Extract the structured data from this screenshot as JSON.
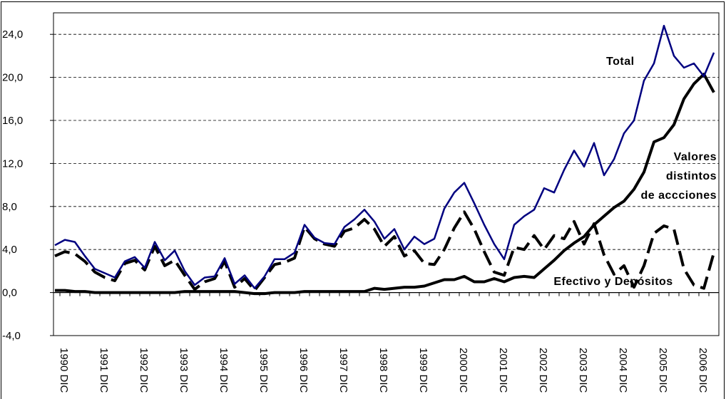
{
  "chart_data": {
    "type": "line",
    "categories": [
      null,
      "1990 DIC",
      null,
      null,
      null,
      "1991 DIC",
      null,
      null,
      null,
      "1992 DIC",
      null,
      null,
      null,
      "1993 DIC",
      null,
      null,
      null,
      "1994 DIC",
      null,
      null,
      null,
      "1995 DIC",
      null,
      null,
      null,
      "1996 DIC",
      null,
      null,
      null,
      "1997 DIC",
      null,
      null,
      null,
      "1998 DIC",
      null,
      null,
      null,
      "1999 DIC",
      null,
      null,
      null,
      "2000 DIC",
      null,
      null,
      null,
      "2001 DIC",
      null,
      null,
      null,
      "2002 DIC",
      null,
      null,
      null,
      "2003 DIC",
      null,
      null,
      null,
      "2004 DIC",
      null,
      null,
      null,
      "2005 DIC",
      null,
      null,
      null,
      "2006 DIC",
      null
    ],
    "series": [
      {
        "name": "Total",
        "color": "#000080",
        "style": "solid",
        "width": 2.5,
        "values": [
          4.4,
          4.9,
          4.7,
          3.4,
          2.2,
          1.8,
          1.4,
          2.9,
          3.3,
          2.3,
          4.7,
          3.0,
          3.9,
          2.0,
          0.7,
          1.4,
          1.5,
          3.2,
          0.8,
          1.6,
          0.4,
          1.5,
          3.1,
          3.1,
          3.7,
          6.3,
          5.1,
          4.6,
          4.5,
          6.1,
          6.8,
          7.7,
          6.6,
          5.0,
          5.9,
          4.0,
          5.2,
          4.5,
          5.0,
          7.8,
          9.3,
          10.2,
          8.3,
          6.3,
          4.5,
          3.1,
          6.3,
          7.1,
          7.7,
          9.7,
          9.3,
          11.4,
          13.2,
          11.7,
          13.9,
          10.9,
          12.4,
          14.8,
          16.0,
          19.7,
          21.3,
          24.8,
          22.0,
          20.9,
          21.3,
          20.1,
          22.3
        ]
      },
      {
        "color": "#000000",
        "style": "solid",
        "width": 4,
        "values": [
          0.2,
          0.2,
          0.1,
          0.1,
          0,
          0,
          0,
          0,
          0,
          0,
          0,
          0,
          0,
          0.1,
          0.1,
          0.1,
          0.1,
          0.1,
          0.1,
          0,
          -0.1,
          -0.1,
          0,
          0,
          0,
          0.1,
          0.1,
          0.1,
          0.1,
          0.1,
          0.1,
          0.1,
          0.4,
          0.3,
          0.4,
          0.5,
          0.5,
          0.6,
          0.9,
          1.2,
          1.2,
          1.5,
          1.0,
          1.0,
          1.3,
          1.0,
          1.4,
          1.5,
          1.4,
          2.2,
          3.0,
          3.9,
          4.6,
          5.2,
          6.3,
          7.1,
          7.9,
          8.5,
          9.6,
          11.2,
          14.0,
          14.4,
          15.6,
          18.0,
          19.4,
          20.3,
          18.6
        ]
      },
      {
        "name": "Efectivo y Depósitos",
        "color": "#000000",
        "style": "dashed",
        "width": 4,
        "values": [
          3.4,
          3.8,
          3.6,
          2.9,
          1.9,
          1.4,
          1.1,
          2.7,
          3.0,
          2.1,
          4.3,
          2.5,
          3.0,
          1.6,
          0.3,
          1.0,
          1.3,
          2.9,
          0.5,
          1.3,
          0.2,
          1.4,
          2.6,
          2.8,
          3.2,
          6.1,
          5.0,
          4.5,
          4.3,
          5.7,
          6.0,
          6.8,
          5.9,
          4.3,
          5.2,
          3.4,
          3.9,
          2.7,
          2.6,
          4.0,
          6.0,
          7.5,
          5.9,
          3.8,
          1.9,
          1.6,
          4.2,
          4.0,
          5.3,
          4.0,
          5.3,
          5.0,
          6.6,
          4.5,
          6.4,
          3.5,
          1.7,
          2.5,
          0.5,
          2.5,
          5.5,
          6.2,
          5.9,
          2.2,
          0.7,
          0.4,
          3.7
        ]
      }
    ],
    "annotations": [
      "Valores",
      "distintos",
      "de accciones"
    ],
    "ylim": [
      -4,
      26
    ],
    "yticks": [
      {
        "value": -4,
        "label": "-4,0"
      },
      {
        "value": 0,
        "label": "0,0"
      },
      {
        "value": 4,
        "label": "4,0"
      },
      {
        "value": 8,
        "label": "8,0"
      },
      {
        "value": 12,
        "label": "12,0"
      },
      {
        "value": 16,
        "label": "16,0"
      },
      {
        "value": 20,
        "label": "20,0"
      },
      {
        "value": 24,
        "label": "24,0"
      }
    ],
    "grid": true
  }
}
